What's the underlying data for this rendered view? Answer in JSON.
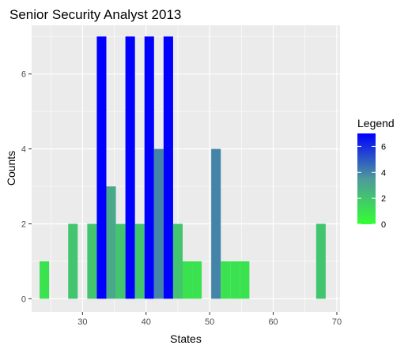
{
  "chart_data": {
    "type": "bar",
    "title": "Senior Security Analyst 2013",
    "xlabel": "States",
    "ylabel": "Counts",
    "xlim": [
      22,
      70.5
    ],
    "ylim": [
      -0.35,
      7.3
    ],
    "x_ticks": [
      30,
      40,
      50,
      60,
      70
    ],
    "y_ticks": [
      0,
      2,
      4,
      6
    ],
    "bin_width": 1.5,
    "grid": true,
    "legend": {
      "title": "Legend",
      "position": "right",
      "type": "colorbar",
      "range": [
        0,
        7
      ],
      "ticks": [
        0,
        2,
        4,
        6
      ],
      "color_low": "#33ff33",
      "color_high": "#0000ff"
    },
    "bins": [
      {
        "x": 24,
        "count": 1
      },
      {
        "x": 28.5,
        "count": 2
      },
      {
        "x": 31.5,
        "count": 2
      },
      {
        "x": 33,
        "count": 7
      },
      {
        "x": 34.5,
        "count": 3
      },
      {
        "x": 36,
        "count": 2
      },
      {
        "x": 37.5,
        "count": 7
      },
      {
        "x": 39,
        "count": 2
      },
      {
        "x": 40.5,
        "count": 7
      },
      {
        "x": 42,
        "count": 4
      },
      {
        "x": 43.5,
        "count": 7
      },
      {
        "x": 45,
        "count": 2
      },
      {
        "x": 46.5,
        "count": 1
      },
      {
        "x": 48,
        "count": 1
      },
      {
        "x": 51,
        "count": 4
      },
      {
        "x": 52.5,
        "count": 1
      },
      {
        "x": 54,
        "count": 1
      },
      {
        "x": 55.5,
        "count": 1
      },
      {
        "x": 67.5,
        "count": 2
      }
    ]
  }
}
